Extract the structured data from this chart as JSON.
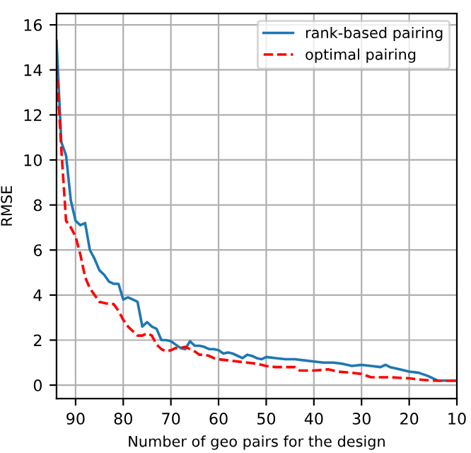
{
  "chart_data": {
    "type": "line",
    "xlabel": "Number of geo pairs for the design",
    "ylabel": "RMSE",
    "xlim": [
      94,
      10
    ],
    "xticks": [
      90,
      80,
      70,
      60,
      50,
      40,
      30,
      20,
      10
    ],
    "ylim": [
      -0.6,
      16.5
    ],
    "yticks": [
      0,
      2,
      4,
      6,
      8,
      10,
      12,
      14,
      16
    ],
    "grid": true,
    "legend": "top right",
    "series": [
      {
        "name": "rank-based pairing",
        "color": "#1f77b4",
        "line_style": "solid",
        "x": [
          94,
          93,
          92,
          91,
          90,
          89,
          88,
          87,
          86,
          85,
          84,
          83,
          82,
          81,
          80,
          79,
          78,
          77,
          76,
          75,
          74,
          73,
          72,
          71,
          70,
          69,
          68,
          67,
          66,
          65,
          64,
          63,
          62,
          61,
          60,
          59,
          58,
          57,
          56,
          55,
          54,
          53,
          52,
          51,
          50,
          48,
          46,
          44,
          42,
          40,
          38,
          36,
          34,
          32,
          30,
          28,
          26,
          25,
          24,
          22,
          20,
          18,
          16,
          14,
          12,
          10
        ],
        "values": [
          15.3,
          10.8,
          10.2,
          8.2,
          7.3,
          7.1,
          7.2,
          6.0,
          5.6,
          5.1,
          4.9,
          4.6,
          4.5,
          4.5,
          3.8,
          3.9,
          3.8,
          3.7,
          2.6,
          2.8,
          2.6,
          2.5,
          2.0,
          2.0,
          1.95,
          1.8,
          1.65,
          1.6,
          1.95,
          1.75,
          1.75,
          1.7,
          1.6,
          1.6,
          1.55,
          1.4,
          1.45,
          1.4,
          1.3,
          1.2,
          1.35,
          1.3,
          1.2,
          1.15,
          1.25,
          1.2,
          1.15,
          1.15,
          1.1,
          1.05,
          1.0,
          1.0,
          0.95,
          0.85,
          0.9,
          0.85,
          0.8,
          0.9,
          0.8,
          0.7,
          0.6,
          0.55,
          0.4,
          0.2,
          0.2,
          0.2
        ]
      },
      {
        "name": "optimal pairing",
        "color": "#ff0000",
        "line_style": "dashed",
        "x": [
          94,
          93,
          92,
          91,
          90,
          89,
          88,
          87,
          86,
          85,
          84,
          83,
          82,
          81,
          80,
          79,
          78,
          77,
          76,
          75,
          74,
          73,
          72,
          71,
          70,
          69,
          68,
          67,
          66,
          65,
          64,
          63,
          62,
          61,
          60,
          58,
          56,
          54,
          52,
          50,
          48,
          46,
          44,
          43,
          40,
          37,
          35,
          32,
          30,
          28,
          24,
          20,
          18,
          15,
          10
        ],
        "values": [
          14.2,
          10.5,
          7.3,
          7.0,
          6.6,
          5.8,
          4.8,
          4.3,
          4.0,
          3.7,
          3.65,
          3.6,
          3.6,
          3.3,
          2.9,
          2.6,
          2.4,
          2.2,
          2.2,
          2.3,
          2.2,
          1.8,
          1.6,
          1.5,
          1.55,
          1.65,
          1.65,
          1.7,
          1.6,
          1.5,
          1.35,
          1.35,
          1.3,
          1.2,
          1.15,
          1.1,
          1.05,
          1.0,
          0.95,
          0.85,
          0.8,
          0.8,
          0.8,
          0.65,
          0.65,
          0.7,
          0.6,
          0.55,
          0.5,
          0.35,
          0.35,
          0.3,
          0.25,
          0.2,
          0.2
        ]
      }
    ]
  }
}
